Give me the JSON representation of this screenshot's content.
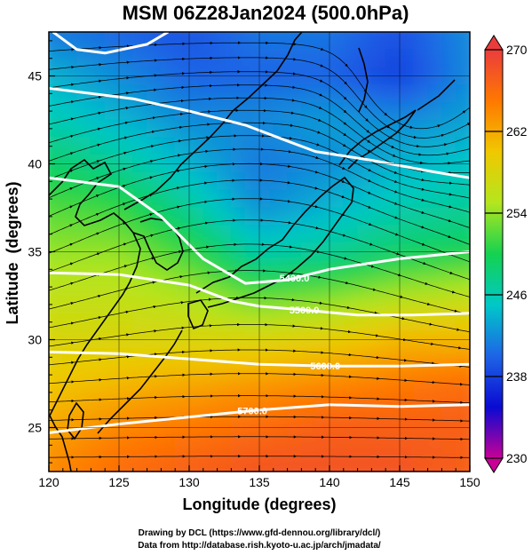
{
  "chart_data": {
    "type": "heatmap",
    "title": "MSM 06Z28Jan2024 (500.0hPa)",
    "xlabel": "Longitude (degrees)",
    "ylabel": "Latitude  (degrees)",
    "xlim": [
      120,
      150
    ],
    "ylim": [
      22.5,
      47.5
    ],
    "x_ticks": [
      120,
      125,
      130,
      135,
      140,
      145,
      150
    ],
    "y_ticks": [
      25,
      30,
      35,
      40,
      45
    ],
    "colorbar": {
      "min": 230,
      "max": 270,
      "ticks": [
        230,
        238,
        246,
        254,
        262,
        270
      ],
      "colors": [
        "#c80096",
        "#0a0ad2",
        "#1e64e6",
        "#00c8c8",
        "#14d250",
        "#b4e61e",
        "#f0c800",
        "#ff7800",
        "#eb3c3c"
      ],
      "extend": "both"
    },
    "temperature_field_K": {
      "lon": [
        120,
        125,
        130,
        135,
        140,
        145,
        150
      ],
      "lat": [
        47.5,
        45,
        42.5,
        40,
        37.5,
        35,
        32.5,
        30,
        27.5,
        25,
        22.5
      ],
      "values": [
        [
          241,
          240,
          239,
          241,
          241,
          239,
          242
        ],
        [
          244,
          242,
          240,
          240,
          240,
          238,
          242
        ],
        [
          246,
          244,
          242,
          242,
          243,
          242,
          243
        ],
        [
          249,
          247,
          244,
          241,
          242,
          244,
          245
        ],
        [
          252,
          251,
          247,
          242,
          244,
          246,
          247
        ],
        [
          254,
          254,
          251,
          246,
          247,
          249,
          250
        ],
        [
          256,
          256,
          255,
          252,
          253,
          255,
          256
        ],
        [
          258,
          258,
          258,
          258,
          259,
          261,
          261
        ],
        [
          260,
          261,
          262,
          263,
          264,
          265,
          266
        ],
        [
          262,
          264,
          265,
          266,
          267,
          267,
          267
        ],
        [
          264,
          266,
          267,
          268,
          268,
          268,
          267
        ]
      ]
    },
    "contours": [
      {
        "label": "5400.0",
        "points": [
          [
            120,
            39.2
          ],
          [
            125,
            38.7
          ],
          [
            128,
            37.0
          ],
          [
            131,
            34.6
          ],
          [
            134,
            33.2
          ],
          [
            137,
            33.4
          ],
          [
            140,
            34.0
          ],
          [
            145,
            34.6
          ],
          [
            150,
            35.0
          ]
        ]
      },
      {
        "label": "5500.0",
        "points": [
          [
            120,
            33.8
          ],
          [
            125,
            33.7
          ],
          [
            130,
            33.1
          ],
          [
            133,
            32.2
          ],
          [
            135,
            31.9
          ],
          [
            138,
            31.7
          ],
          [
            142,
            31.4
          ],
          [
            146,
            31.4
          ],
          [
            150,
            31.5
          ]
        ]
      },
      {
        "label": "5600.0",
        "points": [
          [
            120,
            29.3
          ],
          [
            125,
            29.2
          ],
          [
            130,
            28.9
          ],
          [
            135,
            28.6
          ],
          [
            140,
            28.5
          ],
          [
            145,
            28.5
          ],
          [
            150,
            28.6
          ]
        ]
      },
      {
        "label": "5700.0",
        "points": [
          [
            120,
            24.7
          ],
          [
            125,
            25.2
          ],
          [
            130,
            25.6
          ],
          [
            135,
            26.0
          ],
          [
            140,
            26.3
          ],
          [
            145,
            26.2
          ],
          [
            150,
            26.3
          ]
        ]
      },
      {
        "label": "",
        "points": [
          [
            120,
            44.3
          ],
          [
            126,
            43.7
          ],
          [
            130,
            43.0
          ],
          [
            134,
            42.2
          ],
          [
            137,
            41.3
          ],
          [
            139,
            40.7
          ],
          [
            143,
            40.2
          ],
          [
            147,
            39.6
          ],
          [
            150,
            39.2
          ]
        ]
      },
      {
        "label": "",
        "points": [
          [
            120.3,
            47.5
          ],
          [
            122,
            46.5
          ],
          [
            124,
            46.3
          ],
          [
            127,
            46.8
          ],
          [
            128.5,
            47.5
          ]
        ]
      }
    ],
    "streamlines": {
      "west_wind_bands": "lat 22.5-47.5",
      "cyclone_center": [
        146,
        44
      ]
    },
    "annotations": [
      "Drawing by DCL (https://www.gfd-dennou.org/library/dcl/)",
      "Data from http://database.rish.kyoto-u.ac.jp/arch/jmadata/"
    ]
  },
  "colors": {
    "contour": "#ffffff",
    "streamline": "#000000",
    "coast": "#000000"
  }
}
